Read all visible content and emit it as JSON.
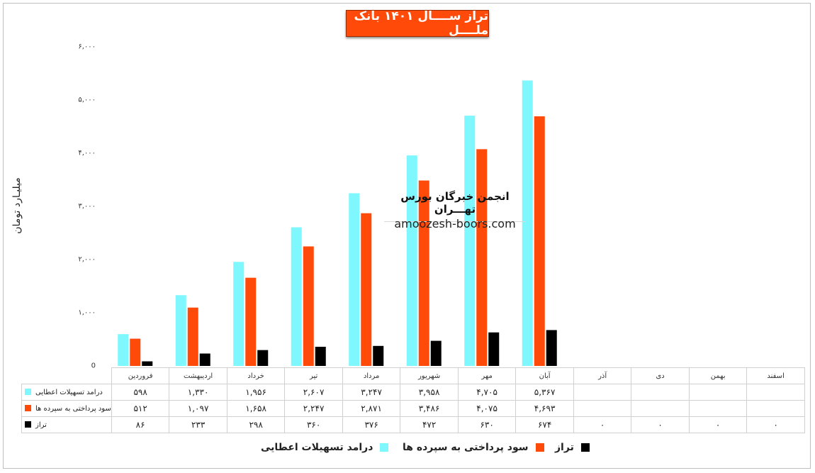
{
  "chart_data": {
    "type": "bar",
    "title": "تراز ســــال ۱۴۰۱ بانک ملــــل",
    "ylabel": "میلیـارد تومان",
    "xlabel": "",
    "ylim": [
      0,
      6000
    ],
    "y_ticks": [
      "0",
      "۱,۰۰۰",
      "۲,۰۰۰",
      "۳,۰۰۰",
      "۴,۰۰۰",
      "۵,۰۰۰",
      "۶,۰۰۰"
    ],
    "y_tick_values": [
      0,
      1000,
      2000,
      3000,
      4000,
      5000,
      6000
    ],
    "grid": false,
    "legend_position": "bottom",
    "categories": [
      "فروردین",
      "اردیبهشت",
      "خرداد",
      "تیر",
      "مرداد",
      "شهریور",
      "مهر",
      "آبان",
      "آذر",
      "دی",
      "بهمن",
      "اسفند"
    ],
    "series": [
      {
        "name": "درامد تسهیلات اعطایی",
        "color": "#7ff7ff",
        "values": [
          598,
          1330,
          1956,
          2607,
          3247,
          3958,
          4705,
          5367,
          null,
          null,
          null,
          null
        ],
        "labels": [
          "۵۹۸",
          "۱,۳۳۰",
          "۱,۹۵۶",
          "۲,۶۰۷",
          "۳,۲۴۷",
          "۳,۹۵۸",
          "۴,۷۰۵",
          "۵,۳۶۷",
          "",
          "",
          "",
          ""
        ]
      },
      {
        "name": "سود پرداختی به سپرده ها",
        "color": "#ff4a0a",
        "values": [
          512,
          1097,
          1658,
          2247,
          2871,
          3486,
          4075,
          4693,
          null,
          null,
          null,
          null
        ],
        "labels": [
          "۵۱۲",
          "۱,۰۹۷",
          "۱,۶۵۸",
          "۲,۲۴۷",
          "۲,۸۷۱",
          "۳,۴۸۶",
          "۴,۰۷۵",
          "۴,۶۹۳",
          "",
          "",
          "",
          ""
        ]
      },
      {
        "name": "تراز",
        "color": "#000000",
        "values": [
          86,
          233,
          298,
          360,
          376,
          472,
          630,
          674,
          0,
          0,
          0,
          0
        ],
        "labels": [
          "۸۶",
          "۲۳۳",
          "۲۹۸",
          "۳۶۰",
          "۳۷۶",
          "۴۷۲",
          "۶۳۰",
          "۶۷۴",
          "۰",
          "۰",
          "۰",
          "۰"
        ]
      }
    ],
    "watermark": {
      "line1": "انجمن خبرگان بورس تهـــران",
      "line2": "amoozesh-boors.com"
    }
  }
}
